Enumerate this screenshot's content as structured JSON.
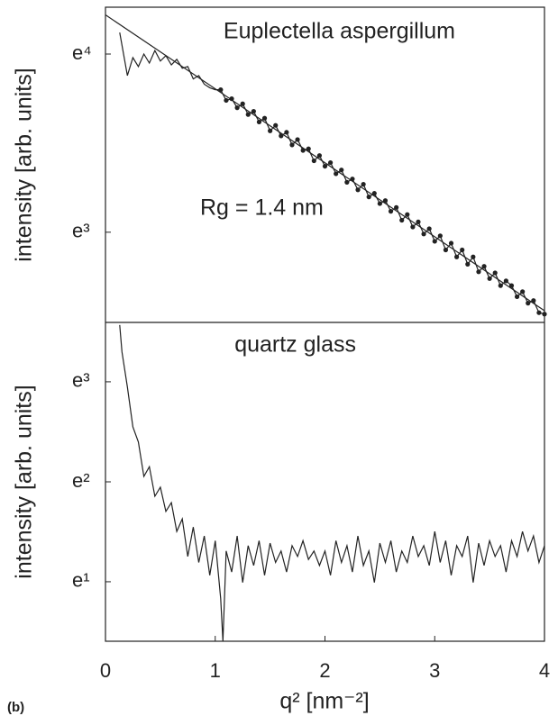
{
  "panel_label": "(b)",
  "chart_data": [
    {
      "type": "line",
      "title": "Euplectella aspergillum",
      "annotation": "Rg = 1.4 nm",
      "ylabel": "intensity [arb. units]",
      "log_base": "e",
      "xlim": [
        0,
        4
      ],
      "ylim": [
        12.12,
        71.0
      ],
      "yticks": [
        {
          "value": 54.6,
          "label": "e⁴"
        },
        {
          "value": 20.1,
          "label": "e³"
        }
      ],
      "series": [
        {
          "color": "#222222",
          "marker": false,
          "x": [
            0.13,
            0.15,
            0.2,
            0.25,
            0.3,
            0.35,
            0.4,
            0.45,
            0.5,
            0.55,
            0.6,
            0.65,
            0.7,
            0.75,
            0.8,
            0.85,
            0.9,
            0.95,
            1.0,
            1.05
          ],
          "values": [
            61.6,
            57.4,
            48.4,
            53.5,
            50.9,
            54.6,
            51.9,
            55.7,
            52.5,
            54.1,
            51.4,
            53.0,
            50.4,
            50.9,
            47.5,
            48.4,
            46.1,
            45.2,
            44.7,
            44.7
          ]
        },
        {
          "color": "#222222",
          "marker": true,
          "x": [
            1.05,
            1.1,
            1.15,
            1.2,
            1.25,
            1.3,
            1.35,
            1.4,
            1.45,
            1.5,
            1.55,
            1.6,
            1.65,
            1.7,
            1.75,
            1.8,
            1.85,
            1.9,
            1.95,
            2.0,
            2.05,
            2.1,
            2.15,
            2.2,
            2.25,
            2.3,
            2.35,
            2.4,
            2.45,
            2.5,
            2.55,
            2.6,
            2.65,
            2.7,
            2.75,
            2.8,
            2.85,
            2.9,
            2.95,
            3.0,
            3.05,
            3.1,
            3.15,
            3.2,
            3.25,
            3.3,
            3.35,
            3.4,
            3.45,
            3.5,
            3.55,
            3.6,
            3.65,
            3.7,
            3.75,
            3.8,
            3.85,
            3.9,
            3.95,
            4.0
          ],
          "values": [
            44.7,
            42.1,
            42.5,
            40.4,
            41.3,
            38.9,
            39.6,
            37.3,
            38.1,
            35.5,
            36.6,
            34.5,
            35.2,
            32.8,
            33.8,
            31.8,
            32.1,
            30.0,
            30.9,
            29.1,
            29.7,
            27.9,
            28.5,
            26.6,
            27.1,
            25.5,
            26.3,
            24.5,
            25.0,
            23.6,
            24.0,
            22.6,
            23.1,
            21.5,
            22.2,
            20.7,
            21.3,
            19.9,
            20.5,
            19.1,
            19.7,
            18.2,
            18.9,
            17.5,
            18.2,
            16.8,
            17.5,
            16.1,
            16.6,
            15.5,
            16.0,
            14.9,
            15.3,
            14.9,
            14.0,
            14.4,
            13.5,
            13.7,
            12.8,
            12.7
          ]
        },
        {
          "color": "#222222",
          "marker": false,
          "x": [
            0,
            4
          ],
          "values": [
            68.0,
            12.94
          ]
        }
      ]
    },
    {
      "type": "line",
      "title": "quartz glass",
      "ylabel": "intensity [arb. units]",
      "xlabel": "q² [nm⁻²]",
      "log_base": "e",
      "xlim": [
        0,
        4
      ],
      "xticks": [
        0,
        1,
        2,
        3,
        4
      ],
      "ylim": [
        1.5,
        36.4
      ],
      "yticks": [
        {
          "value": 20.1,
          "label": "e³"
        },
        {
          "value": 7.39,
          "label": "e²"
        },
        {
          "value": 2.72,
          "label": "e¹"
        }
      ],
      "series": [
        {
          "color": "#222222",
          "marker": false,
          "x": [
            0.13,
            0.15,
            0.2,
            0.25,
            0.3,
            0.35,
            0.4,
            0.45,
            0.5,
            0.55,
            0.6,
            0.65,
            0.7,
            0.75,
            0.8,
            0.85,
            0.9,
            0.95,
            1.0,
            1.05,
            1.07,
            1.1,
            1.15,
            1.2,
            1.25,
            1.3,
            1.35,
            1.4,
            1.45,
            1.5,
            1.55,
            1.6,
            1.65,
            1.7,
            1.75,
            1.8,
            1.85,
            1.9,
            1.95,
            2.0,
            2.05,
            2.1,
            2.15,
            2.2,
            2.25,
            2.3,
            2.35,
            2.4,
            2.45,
            2.5,
            2.55,
            2.6,
            2.65,
            2.7,
            2.75,
            2.8,
            2.85,
            2.9,
            2.95,
            3.0,
            3.05,
            3.1,
            3.15,
            3.2,
            3.25,
            3.3,
            3.35,
            3.4,
            3.45,
            3.5,
            3.55,
            3.6,
            3.65,
            3.7,
            3.75,
            3.8,
            3.85,
            3.9,
            3.95,
            4.0
          ],
          "values": [
            35.5,
            27.1,
            19.1,
            12.8,
            11.0,
            7.8,
            8.6,
            6.4,
            7.0,
            5.5,
            6.0,
            4.5,
            5.1,
            3.5,
            4.7,
            3.3,
            4.3,
            2.9,
            4.1,
            2.3,
            1.5,
            3.7,
            3.0,
            4.3,
            2.7,
            3.9,
            3.2,
            4.1,
            2.9,
            4.0,
            3.3,
            3.7,
            3.0,
            3.9,
            3.5,
            4.1,
            3.4,
            3.7,
            3.2,
            3.7,
            2.9,
            4.1,
            3.3,
            3.9,
            3.0,
            4.3,
            3.2,
            3.7,
            2.7,
            4.0,
            3.3,
            4.1,
            3.0,
            3.7,
            3.3,
            4.3,
            3.5,
            3.9,
            3.2,
            4.5,
            3.3,
            4.1,
            2.9,
            3.9,
            3.5,
            4.3,
            2.7,
            4.0,
            3.2,
            4.1,
            3.5,
            3.9,
            3.0,
            4.1,
            3.5,
            4.5,
            3.7,
            4.3,
            3.3,
            3.9
          ]
        }
      ]
    }
  ]
}
